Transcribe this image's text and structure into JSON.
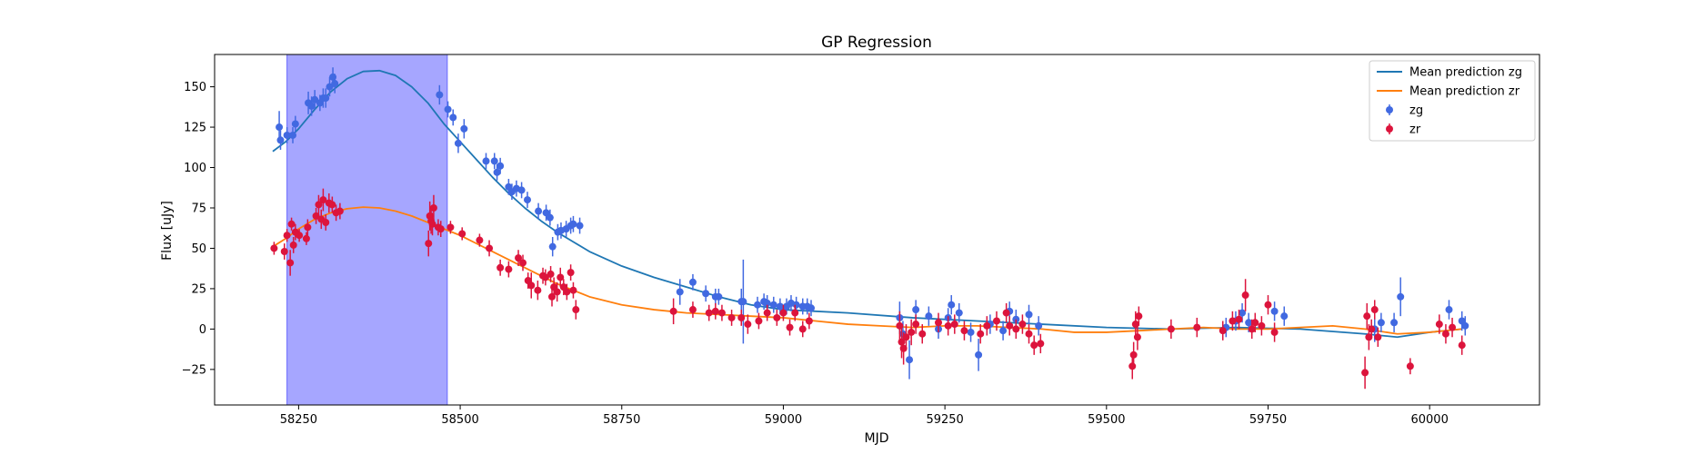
{
  "chart_data": {
    "type": "scatter",
    "title": "GP Regression",
    "xlabel": "MJD",
    "ylabel": "Flux [uJy]",
    "xlim": [
      58120,
      60170
    ],
    "ylim": [
      -47,
      170
    ],
    "xticks": [
      58250,
      58500,
      58750,
      59000,
      59250,
      59500,
      59750,
      60000
    ],
    "yticks": [
      -25,
      0,
      25,
      50,
      75,
      100,
      125,
      150
    ],
    "legend_position": "top-right",
    "highlight_region": {
      "x": [
        58232,
        58480
      ],
      "color": "#a6a6ff"
    },
    "series": [
      {
        "name": "Mean prediction zg",
        "kind": "line",
        "color": "#1f77b4",
        "x": [
          58210,
          58230,
          58250,
          58275,
          58300,
          58325,
          58350,
          58375,
          58400,
          58425,
          58450,
          58475,
          58500,
          58525,
          58550,
          58575,
          58600,
          58625,
          58650,
          58675,
          58700,
          58750,
          58800,
          58850,
          58900,
          58950,
          59000,
          59100,
          59200,
          59300,
          59400,
          59500,
          59600,
          59700,
          59800,
          59900,
          59950,
          60000,
          60050
        ],
        "y": [
          110,
          116,
          124,
          136,
          147,
          155,
          159.5,
          160,
          157,
          150,
          140,
          127,
          116,
          105,
          94,
          84,
          75,
          67,
          60,
          54,
          48,
          39,
          32,
          26,
          20,
          15,
          12,
          10,
          7,
          5,
          3,
          1,
          0,
          1,
          0,
          -3,
          -5,
          -2,
          0
        ]
      },
      {
        "name": "Mean prediction zr",
        "kind": "line",
        "color": "#ff7f0e",
        "x": [
          58210,
          58230,
          58250,
          58275,
          58300,
          58325,
          58350,
          58375,
          58400,
          58425,
          58450,
          58475,
          58500,
          58525,
          58550,
          58575,
          58600,
          58625,
          58650,
          58675,
          58700,
          58750,
          58800,
          58850,
          58900,
          58950,
          59000,
          59050,
          59100,
          59150,
          59200,
          59250,
          59300,
          59350,
          59400,
          59450,
          59500,
          59550,
          59600,
          59650,
          59700,
          59750,
          59800,
          59850,
          59900,
          59950,
          60000,
          60050
        ],
        "y": [
          51,
          56,
          62,
          68,
          72,
          74.5,
          75.5,
          75,
          73,
          70,
          66,
          62,
          58,
          53,
          48,
          43,
          38,
          33,
          28,
          24,
          20,
          15,
          12,
          10,
          9,
          8,
          7,
          5,
          3,
          2,
          1,
          2,
          2,
          1,
          0,
          -2,
          -2,
          -1,
          0,
          1,
          0,
          0,
          1,
          2,
          0,
          -3,
          -2,
          0
        ]
      },
      {
        "name": "zg",
        "kind": "errorbar",
        "color": "#4169e1",
        "x": [
          58220,
          58222,
          58232,
          58241,
          58245,
          58265,
          58270,
          58275,
          58283,
          58288,
          58292,
          58298,
          58303,
          58306,
          58468,
          58481,
          58489,
          58497,
          58506,
          58540,
          58553,
          58557,
          58562,
          58575,
          58580,
          58587,
          58595,
          58604,
          58621,
          58633,
          58639,
          58643,
          58651,
          58656,
          58664,
          58671,
          58675,
          58685,
          58840,
          58860,
          58880,
          58895,
          58900,
          58935,
          58938,
          58960,
          58970,
          58975,
          58985,
          58995,
          59005,
          59012,
          59020,
          59030,
          59037,
          59043,
          59180,
          59185,
          59195,
          59205,
          59225,
          59240,
          59255,
          59260,
          59272,
          59290,
          59302,
          59320,
          59340,
          59350,
          59360,
          59380,
          59395,
          59685,
          59700,
          59710,
          59720,
          59760,
          59775,
          59915,
          59925,
          59945,
          59955,
          60030,
          60050,
          60055
        ],
        "y": [
          125,
          117,
          120,
          120,
          127,
          140,
          138,
          142,
          140,
          143,
          143,
          150,
          156,
          152,
          145,
          136,
          131,
          115,
          124,
          104,
          104,
          97,
          101,
          88,
          85,
          87,
          86,
          80,
          73,
          72,
          69,
          51,
          60,
          61,
          62,
          64,
          65,
          64,
          23,
          29,
          22,
          20,
          20,
          17,
          17,
          15,
          17,
          16,
          15,
          14,
          14,
          16,
          15,
          14,
          14,
          13,
          7,
          -3,
          -19,
          12,
          8,
          0,
          7,
          15,
          10,
          -2,
          -16,
          3,
          -1,
          11,
          6,
          9,
          2,
          1,
          5,
          10,
          4,
          11,
          8,
          0,
          4,
          4,
          20,
          12,
          5,
          2
        ],
        "yerr": [
          10,
          6,
          5,
          5,
          5,
          7,
          6,
          6,
          5,
          6,
          6,
          6,
          6,
          6,
          6,
          5,
          5,
          6,
          6,
          5,
          5,
          5,
          5,
          5,
          5,
          5,
          5,
          5,
          5,
          5,
          5,
          6,
          5,
          5,
          5,
          5,
          5,
          5,
          8,
          5,
          5,
          5,
          5,
          8,
          26,
          5,
          5,
          5,
          5,
          5,
          5,
          5,
          5,
          5,
          5,
          5,
          10,
          8,
          12,
          6,
          6,
          6,
          6,
          6,
          6,
          6,
          10,
          6,
          6,
          6,
          6,
          6,
          6,
          6,
          6,
          6,
          6,
          6,
          6,
          8,
          6,
          6,
          12,
          6,
          6,
          6
        ]
      },
      {
        "name": "zr",
        "kind": "errorbar",
        "color": "#dc143c",
        "x": [
          58212,
          58228,
          58232,
          58237,
          58239,
          58242,
          58245,
          58251,
          58262,
          58264,
          58277,
          58281,
          58285,
          58288,
          58292,
          58297,
          58302,
          58308,
          58314,
          58451,
          58453,
          58455,
          58457,
          58459,
          58466,
          58470,
          58485,
          58503,
          58530,
          58545,
          58562,
          58575,
          58590,
          58597,
          58605,
          58610,
          58620,
          58628,
          58632,
          58640,
          58642,
          58645,
          58650,
          58655,
          58660,
          58665,
          58671,
          58675,
          58679,
          58830,
          58860,
          58885,
          58895,
          58905,
          58920,
          58935,
          58945,
          58962,
          58975,
          58990,
          59000,
          59010,
          59018,
          59030,
          59040,
          59180,
          59183,
          59186,
          59190,
          59198,
          59205,
          59215,
          59240,
          59255,
          59265,
          59280,
          59305,
          59315,
          59330,
          59345,
          59350,
          59360,
          59370,
          59380,
          59388,
          59398,
          59540,
          59542,
          59545,
          59548,
          59550,
          59600,
          59640,
          59680,
          59695,
          59705,
          59715,
          59725,
          59730,
          59740,
          59750,
          59760,
          59900,
          59903,
          59906,
          59910,
          59915,
          59920,
          59970,
          60015,
          60025,
          60035,
          60050
        ],
        "y": [
          50,
          48,
          58,
          41,
          65,
          52,
          60,
          58,
          56,
          63,
          70,
          77,
          68,
          80,
          66,
          78,
          77,
          72,
          73,
          53,
          70,
          67,
          65,
          75,
          63,
          62,
          63,
          59,
          55,
          50,
          38,
          37,
          44,
          41,
          30,
          27,
          24,
          33,
          32,
          34,
          20,
          26,
          23,
          32,
          26,
          23,
          35,
          24,
          12,
          11,
          12,
          10,
          11,
          10,
          7,
          7,
          3,
          5,
          10,
          7,
          10,
          1,
          10,
          0,
          5,
          2,
          -8,
          -12,
          -5,
          -2,
          3,
          -3,
          4,
          2,
          3,
          -1,
          -3,
          2,
          5,
          10,
          2,
          0,
          3,
          -3,
          -10,
          -9,
          -23,
          -16,
          3,
          -5,
          8,
          0,
          1,
          -1,
          5,
          6,
          21,
          0,
          4,
          2,
          15,
          -2,
          -27,
          8,
          -5,
          0,
          12,
          -5,
          -23,
          3,
          -3,
          1,
          -10
        ],
        "yerr": [
          4,
          5,
          4,
          8,
          4,
          5,
          5,
          4,
          4,
          5,
          5,
          6,
          6,
          7,
          5,
          6,
          5,
          5,
          5,
          8,
          9,
          8,
          7,
          8,
          5,
          5,
          4,
          4,
          4,
          5,
          5,
          5,
          5,
          5,
          5,
          8,
          6,
          5,
          5,
          5,
          6,
          6,
          6,
          6,
          5,
          5,
          5,
          5,
          6,
          8,
          5,
          5,
          5,
          5,
          5,
          5,
          6,
          5,
          5,
          5,
          5,
          5,
          5,
          5,
          5,
          9,
          10,
          10,
          8,
          8,
          6,
          6,
          6,
          6,
          6,
          6,
          6,
          6,
          6,
          6,
          6,
          6,
          6,
          6,
          6,
          6,
          8,
          8,
          8,
          8,
          6,
          6,
          6,
          6,
          6,
          6,
          10,
          6,
          6,
          6,
          6,
          6,
          10,
          8,
          8,
          6,
          6,
          6,
          5,
          6,
          6,
          6,
          6
        ]
      }
    ]
  }
}
